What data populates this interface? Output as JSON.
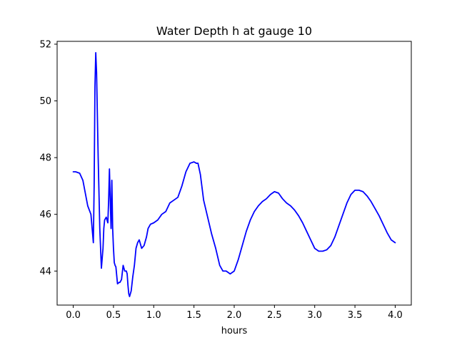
{
  "chart_data": {
    "type": "line",
    "title": "Water Depth h at gauge 10",
    "xlabel": "hours",
    "ylabel": "",
    "xlim": [
      -0.2,
      4.2
    ],
    "ylim": [
      42.8,
      52.1
    ],
    "xticks": [
      0.0,
      0.5,
      1.0,
      1.5,
      2.0,
      2.5,
      3.0,
      3.5,
      4.0
    ],
    "xtick_labels": [
      "0.0",
      "0.5",
      "1.0",
      "1.5",
      "2.0",
      "2.5",
      "3.0",
      "3.5",
      "4.0"
    ],
    "yticks": [
      44,
      46,
      48,
      50,
      52
    ],
    "ytick_labels": [
      "44",
      "46",
      "48",
      "50",
      "52"
    ],
    "grid": false,
    "series": [
      {
        "color": "#0000ff",
        "x": [
          0.0,
          0.03,
          0.08,
          0.12,
          0.18,
          0.22,
          0.25,
          0.26,
          0.27,
          0.28,
          0.29,
          0.31,
          0.33,
          0.35,
          0.37,
          0.38,
          0.39,
          0.41,
          0.43,
          0.44,
          0.45,
          0.46,
          0.47,
          0.48,
          0.49,
          0.5,
          0.51,
          0.52,
          0.53,
          0.55,
          0.57,
          0.58,
          0.6,
          0.62,
          0.64,
          0.66,
          0.67,
          0.68,
          0.69,
          0.7,
          0.72,
          0.74,
          0.76,
          0.78,
          0.8,
          0.82,
          0.85,
          0.88,
          0.91,
          0.93,
          0.96,
          1.0,
          1.05,
          1.1,
          1.15,
          1.2,
          1.25,
          1.3,
          1.35,
          1.4,
          1.45,
          1.5,
          1.53,
          1.55,
          1.58,
          1.62,
          1.67,
          1.72,
          1.77,
          1.82,
          1.86,
          1.9,
          1.95,
          2.0,
          2.05,
          2.1,
          2.15,
          2.2,
          2.25,
          2.3,
          2.35,
          2.4,
          2.45,
          2.5,
          2.55,
          2.6,
          2.65,
          2.7,
          2.75,
          2.8,
          2.85,
          2.9,
          2.95,
          3.0,
          3.05,
          3.1,
          3.15,
          3.2,
          3.25,
          3.3,
          3.35,
          3.4,
          3.45,
          3.5,
          3.55,
          3.6,
          3.65,
          3.7,
          3.75,
          3.8,
          3.85,
          3.9,
          3.95,
          4.0
        ],
        "y": [
          47.5,
          47.5,
          47.45,
          47.2,
          46.3,
          46.0,
          45.0,
          47.0,
          50.5,
          51.7,
          51.0,
          48.0,
          45.5,
          44.1,
          44.8,
          45.5,
          45.8,
          45.9,
          45.7,
          46.5,
          47.6,
          46.5,
          45.5,
          47.2,
          45.5,
          44.8,
          44.3,
          44.2,
          44.15,
          43.55,
          43.6,
          43.6,
          43.7,
          44.2,
          44.0,
          44.0,
          43.9,
          43.5,
          43.2,
          43.1,
          43.3,
          43.8,
          44.2,
          44.8,
          45.0,
          45.1,
          44.8,
          44.9,
          45.2,
          45.5,
          45.65,
          45.7,
          45.8,
          46.0,
          46.1,
          46.4,
          46.5,
          46.6,
          47.0,
          47.5,
          47.8,
          47.85,
          47.8,
          47.8,
          47.4,
          46.5,
          45.9,
          45.3,
          44.8,
          44.2,
          44.0,
          44.0,
          43.9,
          44.0,
          44.4,
          44.9,
          45.4,
          45.8,
          46.1,
          46.3,
          46.45,
          46.55,
          46.7,
          46.8,
          46.75,
          46.55,
          46.4,
          46.3,
          46.15,
          45.95,
          45.7,
          45.4,
          45.1,
          44.8,
          44.7,
          44.7,
          44.75,
          44.9,
          45.2,
          45.6,
          46.0,
          46.4,
          46.7,
          46.85,
          46.85,
          46.8,
          46.65,
          46.45,
          46.2,
          45.95,
          45.65,
          45.35,
          45.1,
          45.0
        ]
      }
    ]
  }
}
